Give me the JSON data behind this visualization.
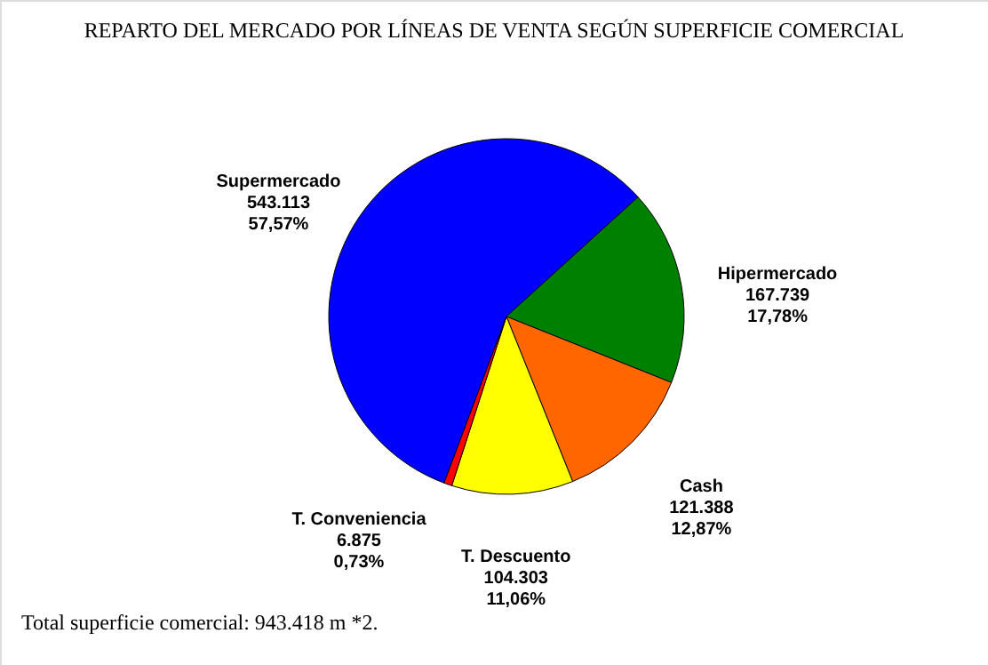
{
  "chart_data": {
    "type": "pie",
    "title": "REPARTO DEL MERCADO POR LÍNEAS DE VENTA SEGÚN SUPERFICIE COMERCIAL",
    "categories": [
      "Supermercado",
      "Hipermercado",
      "Cash",
      "T. Descuento",
      "T. Conveniencia"
    ],
    "values": [
      543113,
      167739,
      121388,
      104303,
      6875
    ],
    "colors": [
      "#0000ff",
      "#008000",
      "#ff6600",
      "#ffff00",
      "#ff0000"
    ],
    "value_labels": [
      "543.113\n57,57%",
      "167.739\n17,78%",
      "121.388\n12,87%",
      "104.303\n11,06%",
      "6.875\n0,73%"
    ],
    "annotations": [
      "Total superficie comercial: 943.418 m *2."
    ]
  }
}
